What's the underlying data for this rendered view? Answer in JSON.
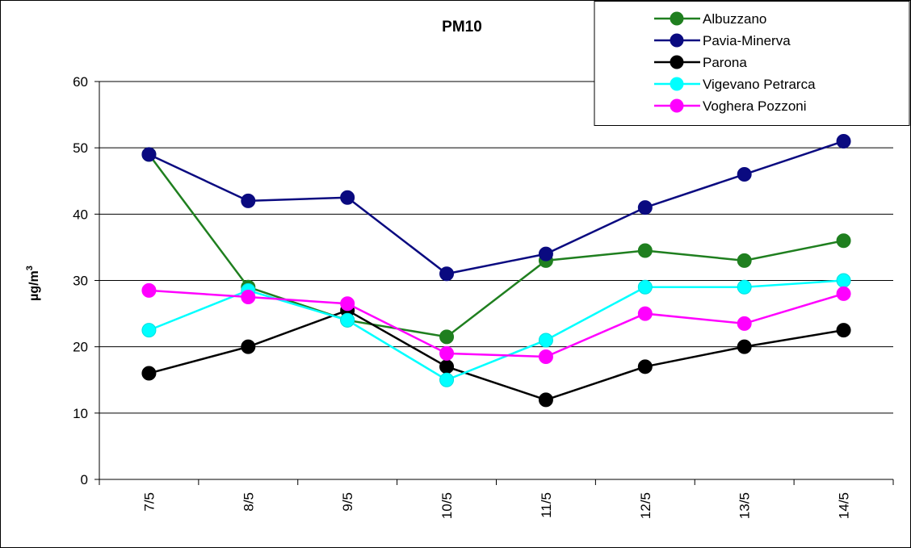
{
  "chart_data": {
    "type": "line",
    "title": "PM10",
    "xlabel": "",
    "ylabel": "µg/m",
    "ylabel_superscript": "3",
    "x": [
      "7/5",
      "8/5",
      "9/5",
      "10/5",
      "11/5",
      "12/5",
      "13/5",
      "14/5"
    ],
    "ylim": [
      0,
      60
    ],
    "yticks": [
      0,
      10,
      20,
      30,
      40,
      50,
      60
    ],
    "grid": "horizontal",
    "legend_position": "top-right",
    "series": [
      {
        "name": "Albuzzano",
        "color": "#1f7f1f",
        "values": [
          49,
          29,
          24,
          21.5,
          33,
          34.5,
          33,
          36
        ]
      },
      {
        "name": "Pavia-Minerva",
        "color": "#0a0a80",
        "values": [
          49,
          42,
          42.5,
          31,
          34,
          41,
          46,
          51
        ]
      },
      {
        "name": "Parona",
        "color": "#000000",
        "values": [
          16,
          20,
          25.5,
          17,
          12,
          17,
          20,
          22.5
        ]
      },
      {
        "name": "Vigevano Petrarca",
        "color": "#00ffff",
        "values": [
          22.5,
          28.5,
          24,
          15,
          21,
          29,
          29,
          30
        ]
      },
      {
        "name": "Voghera Pozzoni",
        "color": "#ff00ff",
        "values": [
          28.5,
          27.5,
          26.5,
          19,
          18.5,
          25,
          23.5,
          28
        ]
      }
    ]
  }
}
